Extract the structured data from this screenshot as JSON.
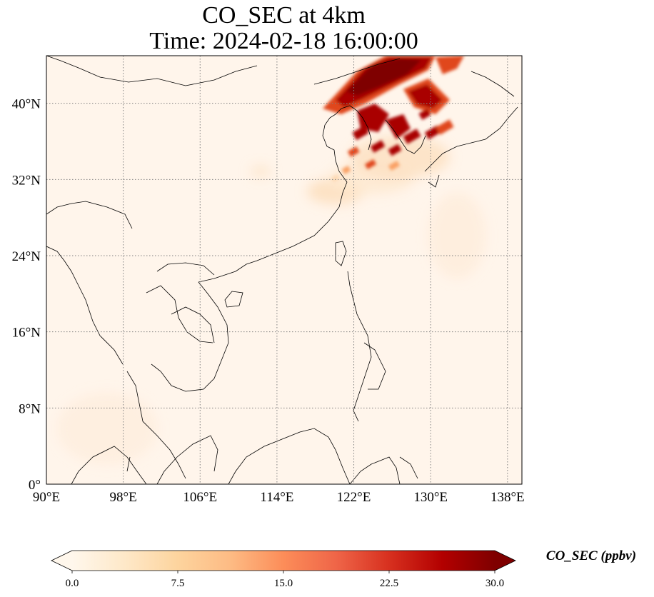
{
  "title": {
    "line1": "CO_SEC at 4km",
    "line2": "Time: 2024-02-18 16:00:00"
  },
  "map": {
    "projection": "PlateCarree",
    "extent": {
      "lon_min": 90,
      "lon_max": 139.5,
      "lat_min": 0,
      "lat_max": 45
    },
    "gridlines": "dotted",
    "lon_ticks": [
      {
        "value": 90,
        "label": "90°E"
      },
      {
        "value": 98,
        "label": "98°E"
      },
      {
        "value": 106,
        "label": "106°E"
      },
      {
        "value": 114,
        "label": "114°E"
      },
      {
        "value": 122,
        "label": "122°E"
      },
      {
        "value": 130,
        "label": "130°E"
      },
      {
        "value": 138,
        "label": "138°E"
      }
    ],
    "lat_ticks": [
      {
        "value": 0,
        "label": "0°"
      },
      {
        "value": 8,
        "label": "8°N"
      },
      {
        "value": 16,
        "label": "16°N"
      },
      {
        "value": 24,
        "label": "24°N"
      },
      {
        "value": 32,
        "label": "32°N"
      },
      {
        "value": 40,
        "label": "40°N"
      }
    ],
    "background_color": "#fff5eb",
    "plume_colors": [
      "#fdd9b4",
      "#f9a065",
      "#e0471c",
      "#a90306",
      "#7f0000"
    ]
  },
  "colorbar": {
    "label": "CO_SEC (ppbv)",
    "min": 0.0,
    "max": 30.0,
    "extend": "both",
    "colormap": "OrRd",
    "ticks": [
      "0.0",
      "7.5",
      "15.0",
      "22.5",
      "30.0"
    ],
    "colors": [
      "#fff7ec",
      "#fee8c8",
      "#fdd49e",
      "#fdbb84",
      "#fc8d59",
      "#ef6548",
      "#d7301f",
      "#b30000",
      "#7f0000"
    ]
  }
}
